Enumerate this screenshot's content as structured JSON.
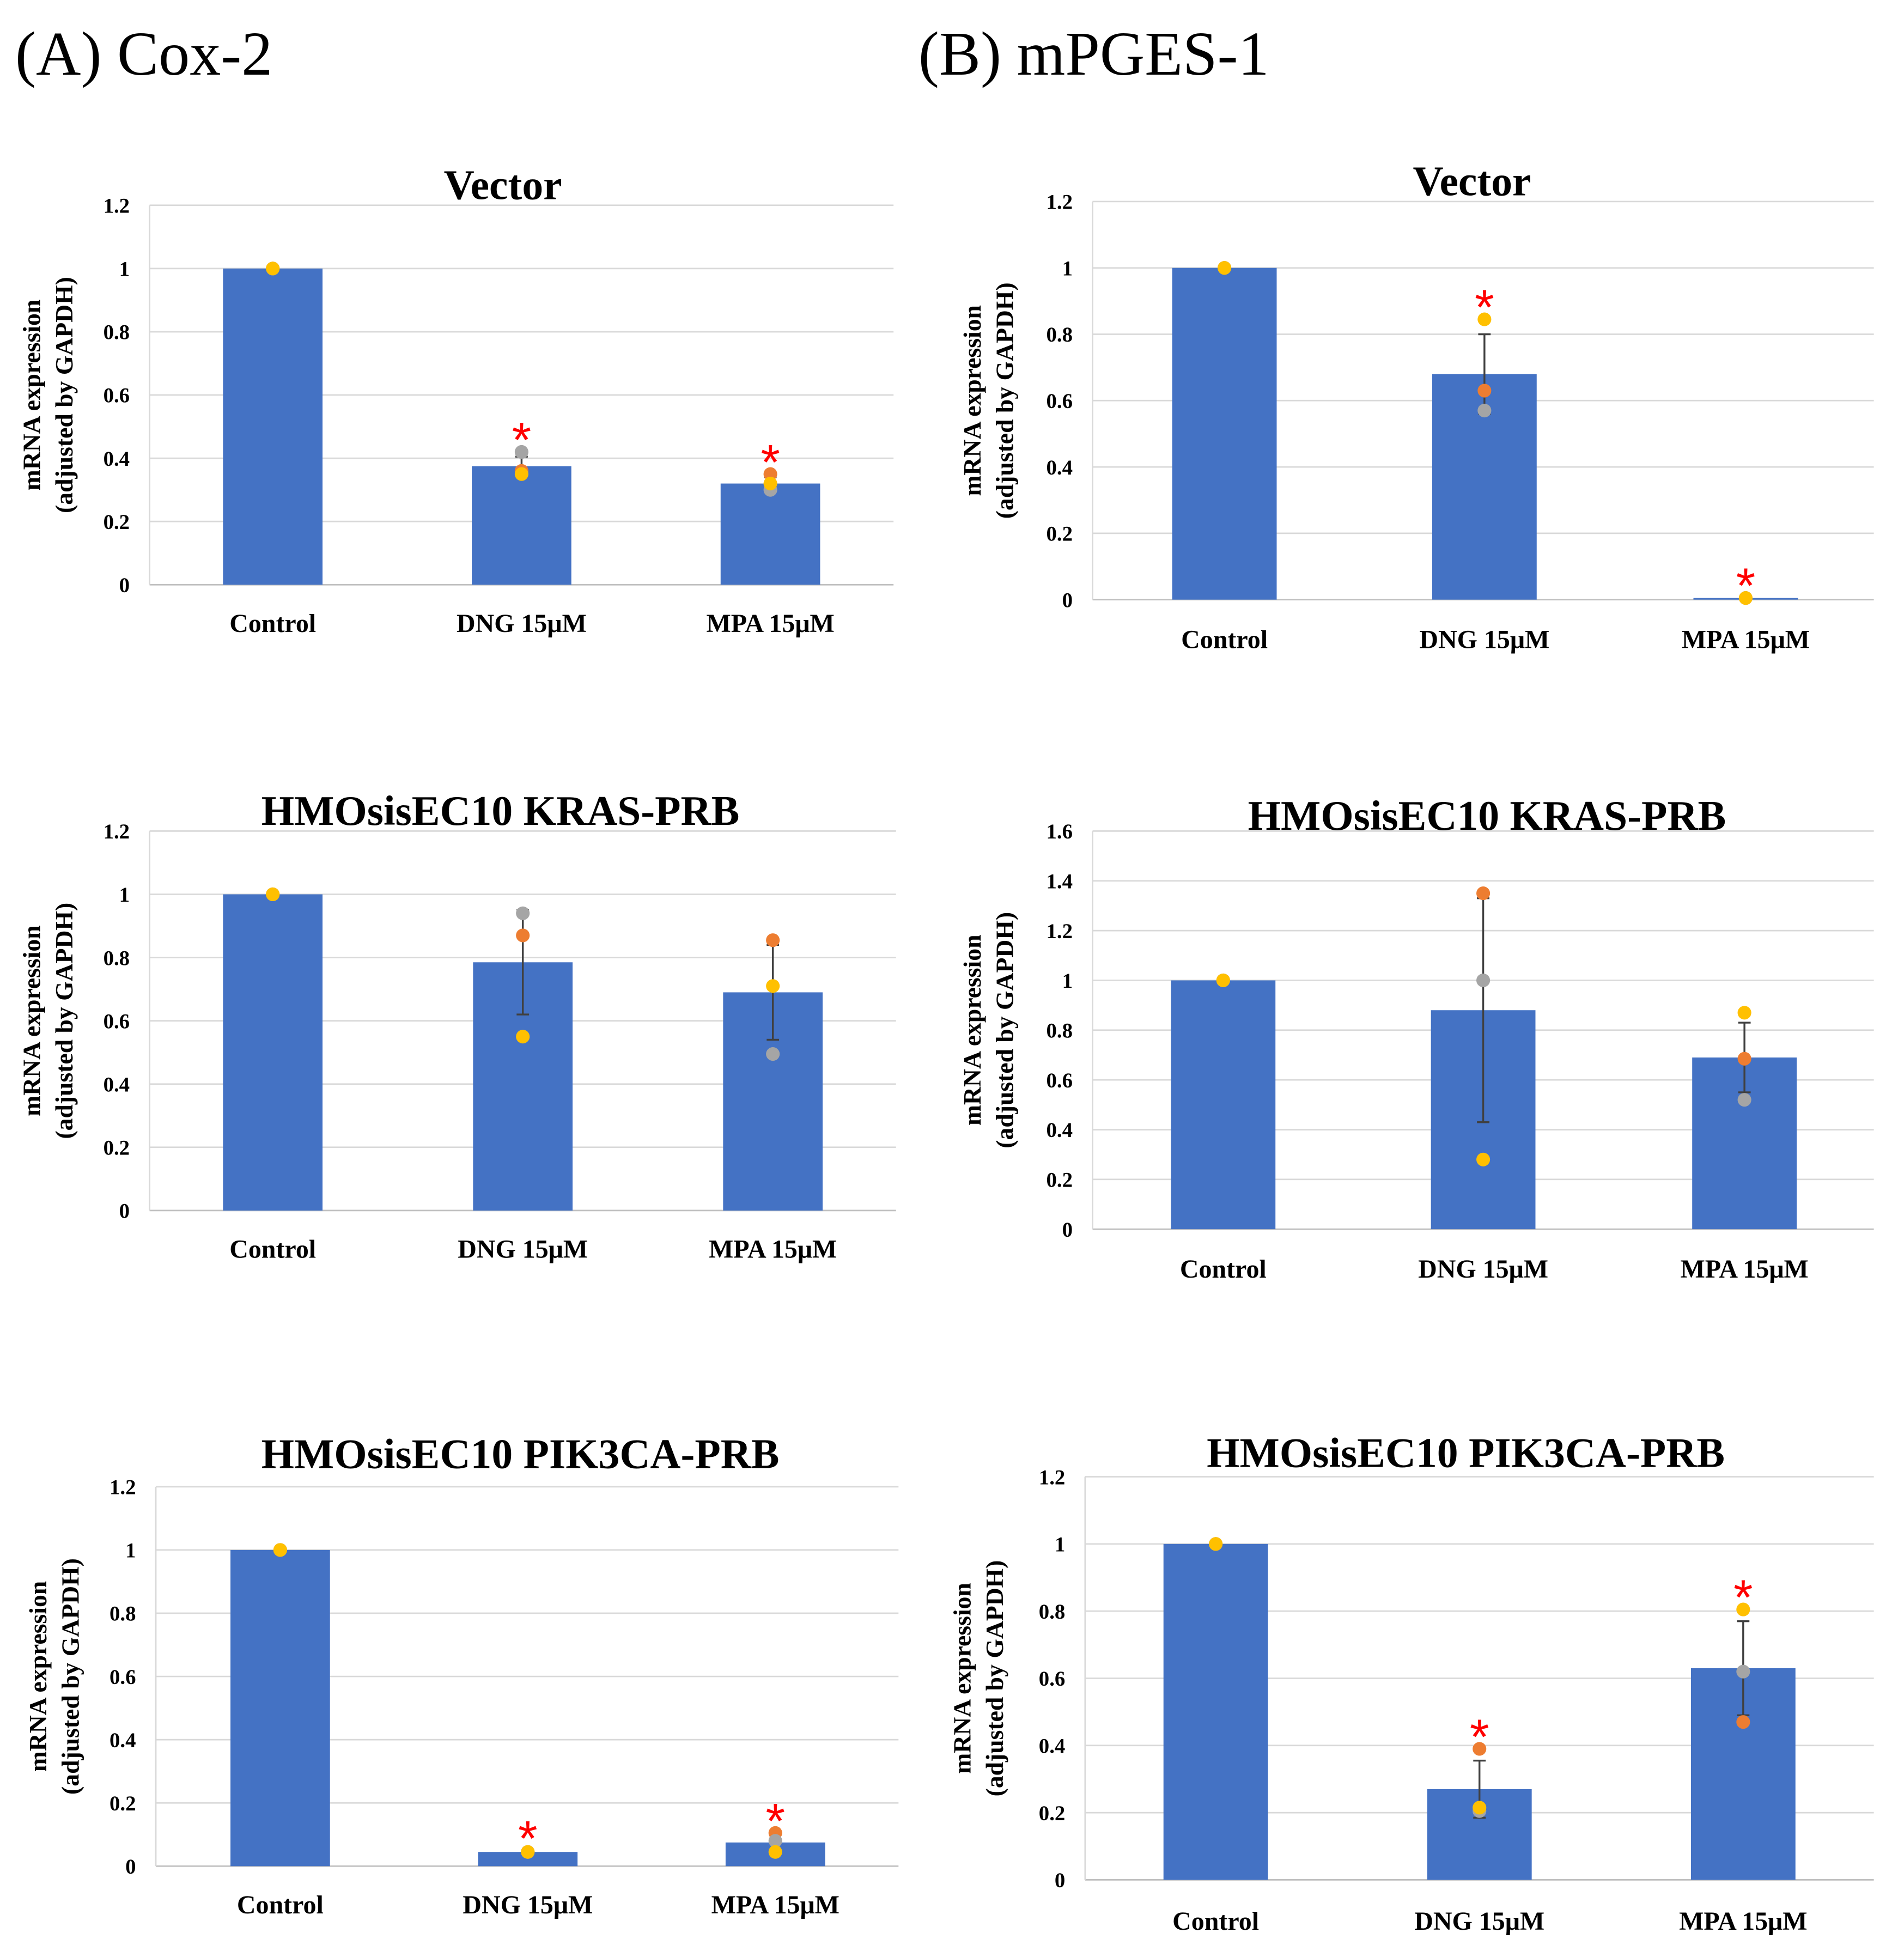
{
  "headers": [
    "(A) Cox-2",
    "(B) mPGES-1"
  ],
  "colors": {
    "bar": "#4472C4",
    "rep1": "#ED7D31",
    "rep2": "#A5A5A5",
    "rep3": "#FFC000",
    "star": "#FF0000",
    "grid": "#D9D9D9",
    "error": "#404040"
  },
  "chart_data": [
    {
      "panel": "A",
      "type": "bar",
      "title": "Vector",
      "ylabel": [
        "mRNA expression",
        "(adjusted by GAPDH)"
      ],
      "ylim": [
        0,
        1.2
      ],
      "ystep": 0.2,
      "grid": true,
      "categories": [
        "Control",
        "DNG 15μM",
        "MPA 15μM"
      ],
      "values": [
        1,
        0.375,
        0.32
      ],
      "error": [
        0,
        0.03,
        0.02
      ],
      "points": {
        "rep1": [
          1,
          0.36,
          0.35
        ],
        "rep2": [
          1,
          0.42,
          0.3
        ],
        "rep3": [
          1,
          0.35,
          0.32
        ]
      },
      "significant": [
        false,
        true,
        true
      ]
    },
    {
      "panel": "A",
      "type": "bar",
      "title": "HMOsisEC10 KRAS-PRB",
      "ylabel": [
        "mRNA expression",
        "(adjusted by GAPDH)"
      ],
      "ylim": [
        0,
        1.2
      ],
      "ystep": 0.2,
      "grid": true,
      "categories": [
        "Control",
        "DNG 15μM",
        "MPA 15μM"
      ],
      "values": [
        1,
        0.785,
        0.69
      ],
      "error": [
        0,
        0.165,
        0.15
      ],
      "points": {
        "rep1": [
          1,
          0.87,
          0.855
        ],
        "rep2": [
          1,
          0.94,
          0.495
        ],
        "rep3": [
          1,
          0.55,
          0.71
        ]
      },
      "significant": [
        false,
        false,
        false
      ]
    },
    {
      "panel": "A",
      "type": "bar",
      "title": "HMOsisEC10 PIK3CA-PRB",
      "ylabel": [
        "mRNA expression",
        "(adjusted by GAPDH)"
      ],
      "ylim": [
        0,
        1.2
      ],
      "ystep": 0.2,
      "grid": true,
      "categories": [
        "Control",
        "DNG 15μM",
        "MPA 15μM"
      ],
      "values": [
        1,
        0.045,
        0.075
      ],
      "error": [
        0,
        0.005,
        0.03
      ],
      "points": {
        "rep1": [
          1,
          0.045,
          0.105
        ],
        "rep2": [
          1,
          0.045,
          0.08
        ],
        "rep3": [
          1,
          0.045,
          0.045
        ]
      },
      "significant": [
        false,
        true,
        true
      ]
    },
    {
      "panel": "B",
      "type": "bar",
      "title": "Vector",
      "ylabel": [
        "mRNA expression",
        "(adjusted by GAPDH)"
      ],
      "ylim": [
        0,
        1.2
      ],
      "ystep": 0.2,
      "grid": true,
      "categories": [
        "Control",
        "DNG 15μM",
        "MPA 15μM"
      ],
      "values": [
        1,
        0.68,
        0.005
      ],
      "error": [
        0,
        0.12,
        0.001
      ],
      "points": {
        "rep1": [
          1,
          0.63,
          0.005
        ],
        "rep2": [
          1,
          0.57,
          0.005
        ],
        "rep3": [
          1,
          0.845,
          0.005
        ]
      },
      "significant": [
        false,
        true,
        true
      ]
    },
    {
      "panel": "B",
      "type": "bar",
      "title": "HMOsisEC10 KRAS-PRB",
      "ylabel": [
        "mRNA expression",
        "(adjusted by GAPDH)"
      ],
      "ylim": [
        0,
        1.6
      ],
      "ystep": 0.2,
      "grid": true,
      "categories": [
        "Control",
        "DNG 15μM",
        "MPA 15μM"
      ],
      "values": [
        1,
        0.88,
        0.69
      ],
      "error": [
        0,
        0.45,
        0.14
      ],
      "points": {
        "rep1": [
          1,
          1.35,
          0.685
        ],
        "rep2": [
          1,
          1.0,
          0.52
        ],
        "rep3": [
          1,
          0.28,
          0.87
        ]
      },
      "significant": [
        false,
        false,
        false
      ]
    },
    {
      "panel": "B",
      "type": "bar",
      "title": "HMOsisEC10 PIK3CA-PRB",
      "ylabel": [
        "mRNA expression",
        "(adjusted by GAPDH)"
      ],
      "ylim": [
        0,
        1.2
      ],
      "ystep": 0.2,
      "grid": true,
      "categories": [
        "Control",
        "DNG 15μM",
        "MPA 15μM"
      ],
      "values": [
        1,
        0.27,
        0.63
      ],
      "error": [
        0,
        0.085,
        0.14
      ],
      "points": {
        "rep1": [
          1,
          0.39,
          0.47
        ],
        "rep2": [
          1,
          0.205,
          0.62
        ],
        "rep3": [
          1,
          0.215,
          0.805
        ]
      },
      "significant": [
        false,
        true,
        true
      ]
    }
  ],
  "significance_marker": "*"
}
